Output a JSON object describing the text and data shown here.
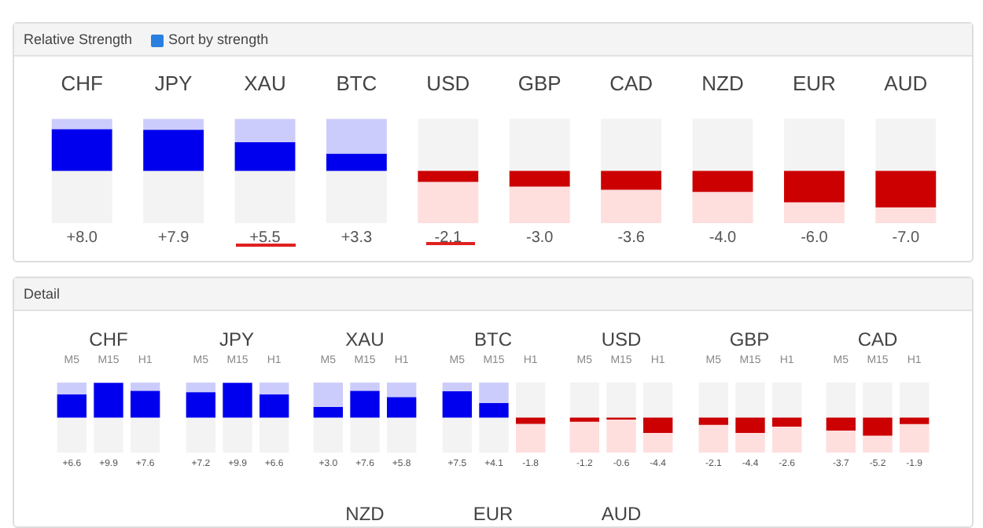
{
  "chart_data": [
    {
      "type": "bar",
      "title": "Relative Strength",
      "annotations": [
        "Sort by strength"
      ],
      "categories": [
        "CHF",
        "JPY",
        "XAU",
        "BTC",
        "USD",
        "GBP",
        "CAD",
        "NZD",
        "EUR",
        "AUD"
      ],
      "stacked": true,
      "ylim": [
        -10,
        10
      ],
      "tick_labels": "x",
      "series": [
        {
          "values": [
            8.0,
            7.9,
            5.5,
            3.3,
            -2.1,
            -3.0,
            -3.6,
            -4.0,
            -6.0,
            -7.0
          ],
          "value_labels": [
            "+8.0",
            "+7.9",
            "+5.5",
            "+3.3",
            "-2.1",
            "-3.0",
            "-3.6",
            "-4.0",
            "-6.0",
            "-7.0"
          ],
          "colors": [
            "#0000ee",
            "#0000ee",
            "#0000ee",
            "#0000ee",
            "#cc0000",
            "#cc0000",
            "#cc0000",
            "#cc0000",
            "#cc0000",
            "#cc0000"
          ]
        },
        {
          "values": [
            2.0,
            2.1,
            4.5,
            6.7,
            -7.9,
            -7.0,
            -6.4,
            -6.0,
            -4.0,
            -3.0
          ],
          "colors": [
            "#ccccfc",
            "#ccccfc",
            "#ccccfc",
            "#ccccfc",
            "#ffdede",
            "#ffdede",
            "#ffdede",
            "#ffdede",
            "#ffdede",
            "#ffdede"
          ]
        }
      ]
    },
    {
      "type": "other",
      "title": "Detail"
    },
    {
      "type": "bar",
      "title": "CHF",
      "categories": [
        "M5",
        "M15",
        "H1"
      ],
      "stacked": true,
      "ylim": [
        -10,
        10
      ],
      "tick_labels": "x",
      "series": [
        {
          "values": [
            6.6,
            9.9,
            7.6
          ],
          "value_labels": [
            "+6.6",
            "+9.9",
            "+7.6"
          ],
          "colors": [
            "#0000ee",
            "#0000ee",
            "#0000ee"
          ]
        },
        {
          "values": [
            3.4,
            null,
            2.4
          ],
          "colors": [
            "#ccccfc",
            "#ccccfc",
            "#ccccfc"
          ]
        }
      ]
    },
    {
      "type": "bar",
      "title": "JPY",
      "categories": [
        "M5",
        "M15",
        "H1"
      ],
      "stacked": true,
      "ylim": [
        -10,
        10
      ],
      "tick_labels": "x",
      "series": [
        {
          "values": [
            7.2,
            9.9,
            6.6
          ],
          "value_labels": [
            "+7.2",
            "+9.9",
            "+6.6"
          ],
          "colors": [
            "#0000ee",
            "#0000ee",
            "#0000ee"
          ]
        },
        {
          "values": [
            2.8,
            null,
            3.4
          ],
          "colors": [
            "#ccccfc",
            "#ccccfc",
            "#ccccfc"
          ]
        }
      ]
    },
    {
      "type": "bar",
      "title": "XAU",
      "categories": [
        "M5",
        "M15",
        "H1"
      ],
      "stacked": true,
      "ylim": [
        -10,
        10
      ],
      "tick_labels": "x",
      "series": [
        {
          "values": [
            3.0,
            7.6,
            5.8
          ],
          "value_labels": [
            "+3.0",
            "+7.6",
            "+5.8"
          ],
          "colors": [
            "#0000ee",
            "#0000ee",
            "#0000ee"
          ]
        },
        {
          "values": [
            7.0,
            2.4,
            4.2
          ],
          "colors": [
            "#ccccfc",
            "#ccccfc",
            "#ccccfc"
          ]
        }
      ]
    },
    {
      "type": "bar",
      "title": "BTC",
      "categories": [
        "M5",
        "M15",
        "H1"
      ],
      "stacked": true,
      "ylim": [
        -10,
        10
      ],
      "tick_labels": "x",
      "series": [
        {
          "values": [
            7.5,
            4.1,
            -1.8
          ],
          "value_labels": [
            "+7.5",
            "+4.1",
            "-1.8"
          ],
          "colors": [
            "#0000ee",
            "#0000ee",
            "#cc0000"
          ]
        },
        {
          "values": [
            2.5,
            5.9,
            -8.2
          ],
          "colors": [
            "#ccccfc",
            "#ccccfc",
            "#ffdede"
          ]
        }
      ]
    },
    {
      "type": "bar",
      "title": "USD",
      "categories": [
        "M5",
        "M15",
        "H1"
      ],
      "stacked": true,
      "ylim": [
        -10,
        10
      ],
      "tick_labels": "x",
      "series": [
        {
          "values": [
            -1.2,
            -0.6,
            -4.4
          ],
          "value_labels": [
            "-1.2",
            "-0.6",
            "-4.4"
          ],
          "colors": [
            "#cc0000",
            "#cc0000",
            "#cc0000"
          ]
        },
        {
          "values": [
            -8.8,
            -9.4,
            -5.6
          ],
          "colors": [
            "#ffdede",
            "#ffdede",
            "#ffdede"
          ]
        }
      ]
    },
    {
      "type": "bar",
      "title": "GBP",
      "categories": [
        "M5",
        "M15",
        "H1"
      ],
      "stacked": true,
      "ylim": [
        -10,
        10
      ],
      "tick_labels": "x",
      "series": [
        {
          "values": [
            -2.1,
            -4.4,
            -2.6
          ],
          "value_labels": [
            "-2.1",
            "-4.4",
            "-2.6"
          ],
          "colors": [
            "#cc0000",
            "#cc0000",
            "#cc0000"
          ]
        },
        {
          "values": [
            -7.9,
            -5.6,
            -7.4
          ],
          "colors": [
            "#ffdede",
            "#ffdede",
            "#ffdede"
          ]
        }
      ]
    },
    {
      "type": "bar",
      "title": "CAD",
      "categories": [
        "M5",
        "M15",
        "H1"
      ],
      "stacked": true,
      "ylim": [
        -10,
        10
      ],
      "tick_labels": "x",
      "series": [
        {
          "values": [
            -3.7,
            -5.2,
            -1.9
          ],
          "value_labels": [
            "-3.7",
            "-5.2",
            "-1.9"
          ],
          "colors": [
            "#cc0000",
            "#cc0000",
            "#cc0000"
          ]
        },
        {
          "values": [
            -6.3,
            -4.8,
            -8.1
          ],
          "colors": [
            "#ffdede",
            "#ffdede",
            "#ffdede"
          ]
        }
      ]
    },
    {
      "type": "other",
      "title": "NZD"
    },
    {
      "type": "other",
      "title": "EUR"
    },
    {
      "type": "other",
      "title": "AUD"
    }
  ]
}
